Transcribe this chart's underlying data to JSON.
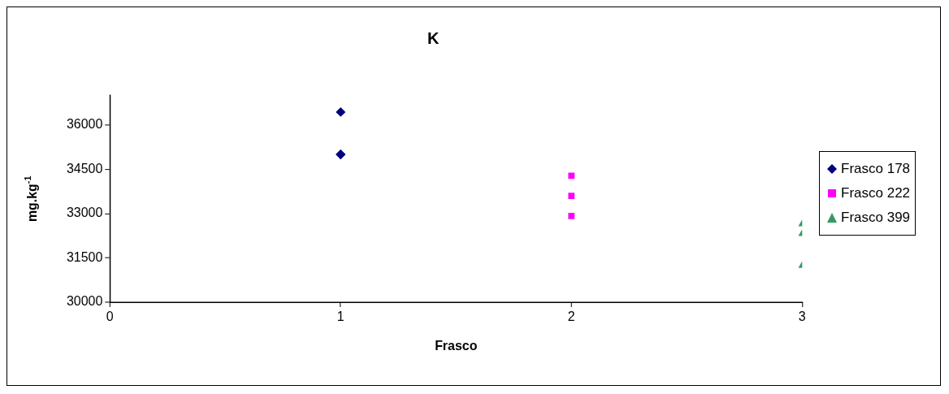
{
  "chart_data": {
    "type": "scatter",
    "title": "K",
    "xlabel": "Frasco",
    "ylabel": "mg.kg$^{-1}$",
    "xlim": [
      0,
      3
    ],
    "xticks": [
      0,
      1,
      2,
      3
    ],
    "ylim": [
      30000,
      37000
    ],
    "yticks": [
      30000,
      31500,
      33000,
      34500,
      36000
    ],
    "grid": false,
    "legend": "right",
    "series": [
      {
        "name": "Frasco 178",
        "color": "#000080",
        "marker": "diamond",
        "x": [
          1,
          1,
          1
        ],
        "values": [
          36440,
          35000,
          35010
        ]
      },
      {
        "name": "Frasco 222",
        "color": "#ff00ff",
        "marker": "square",
        "x": [
          2,
          2,
          2
        ],
        "values": [
          34280,
          33600,
          32920
        ]
      },
      {
        "name": "Frasco 399",
        "color": "#339966",
        "marker": "triangle",
        "x": [
          3,
          3,
          3
        ],
        "values": [
          32650,
          32320,
          31240
        ]
      }
    ]
  }
}
